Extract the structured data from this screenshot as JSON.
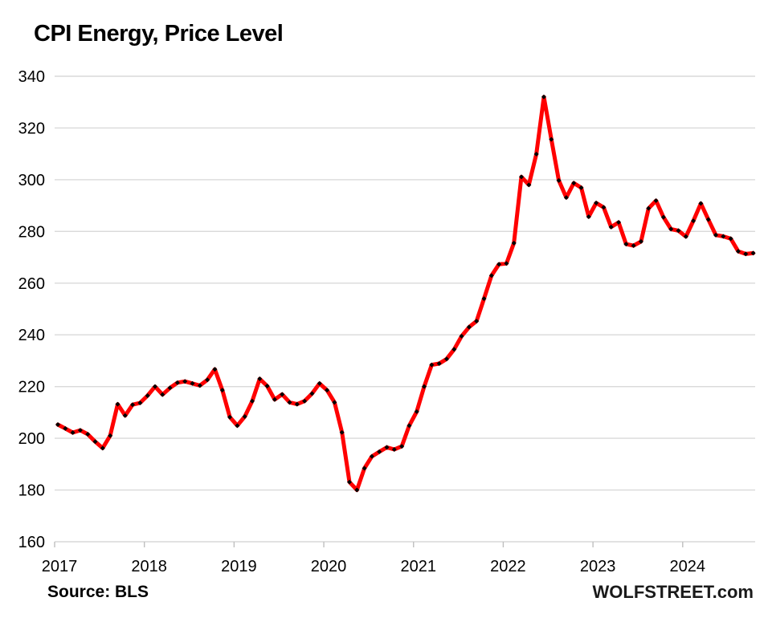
{
  "title": "CPI Energy, Price Level",
  "source_note": "Source: BLS",
  "branding": "WOLFSTREET.com",
  "chart_data": {
    "type": "line",
    "title": "CPI Energy, Price Level",
    "xlabel": "",
    "ylabel": "",
    "x_start": "2017-01",
    "x_end": "2024-10",
    "x_tick_labels": [
      "2017",
      "2018",
      "2019",
      "2020",
      "2021",
      "2022",
      "2023",
      "2024"
    ],
    "y_ticks": [
      160,
      180,
      200,
      220,
      240,
      260,
      280,
      300,
      320,
      340
    ],
    "ylim": [
      160,
      340
    ],
    "grid": "horizontal-only",
    "legend": "none",
    "line_color": "#ff0000",
    "marker_color": "#000000",
    "gridline_color": "#d9d9d9",
    "tick_color": "#bfbfbf",
    "series": [
      {
        "name": "CPI Energy price level index, monthly",
        "values": [
          205.3,
          203.8,
          202.2,
          203.1,
          201.6,
          198.7,
          196.2,
          201.0,
          213.2,
          208.8,
          213.0,
          213.7,
          216.5,
          220.0,
          216.9,
          219.5,
          221.5,
          222.0,
          221.2,
          220.4,
          222.6,
          226.7,
          218.6,
          208.2,
          204.9,
          208.4,
          214.4,
          223.0,
          220.2,
          215.0,
          217.0,
          213.9,
          213.2,
          214.4,
          217.3,
          221.2,
          218.6,
          213.9,
          202.3,
          183.1,
          180.0,
          188.4,
          193.0,
          194.8,
          196.5,
          195.7,
          196.9,
          204.9,
          210.3,
          220.0,
          228.4,
          228.9,
          230.7,
          234.4,
          239.5,
          243.0,
          245.3,
          254.0,
          262.9,
          267.3,
          267.6,
          275.5,
          301.1,
          298.0,
          309.9,
          332.0,
          315.6,
          299.7,
          293.1,
          298.7,
          296.9,
          285.7,
          291.0,
          289.3,
          281.7,
          283.5,
          275.1,
          274.5,
          276.1,
          288.9,
          291.9,
          285.5,
          280.9,
          280.3,
          278.0,
          284.1,
          290.8,
          284.6,
          278.6,
          278.1,
          277.2,
          272.3,
          271.3,
          271.6
        ]
      }
    ]
  }
}
